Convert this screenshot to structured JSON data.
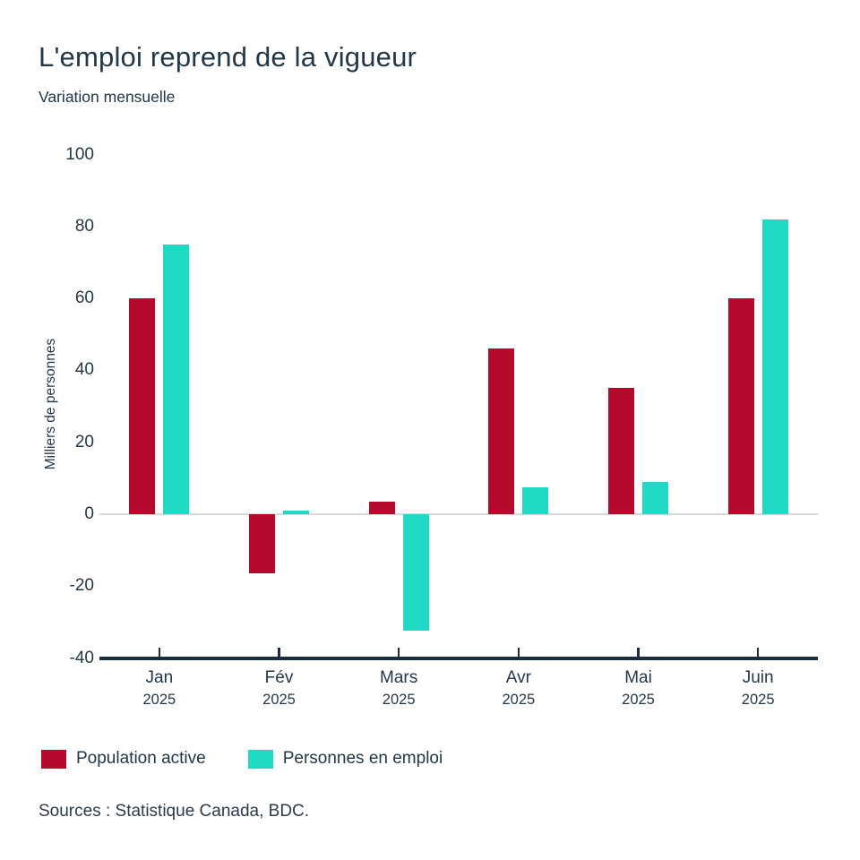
{
  "title": "L'emploi reprend de la vigueur",
  "subtitle": "Variation mensuelle",
  "source": "Sources : Statistique Canada, BDC.",
  "colors": {
    "text": "#233746",
    "axis_line": "#1b2d3d",
    "zero_line": "#d9d9d9",
    "population_active": "#b60a2c",
    "personnes_en_emploi": "#1fd9c5"
  },
  "legend": [
    {
      "label": "Population active",
      "color": "#b60a2c"
    },
    {
      "label": "Personnes en emploi",
      "color": "#1fd9c5"
    }
  ],
  "chart_data": {
    "type": "bar",
    "title": "L'emploi reprend de la vigueur",
    "subtitle": "Variation mensuelle",
    "xlabel": "",
    "ylabel": "Milliers de personnes",
    "ylim": [
      -40,
      100
    ],
    "yticks": [
      100,
      80,
      60,
      40,
      20,
      0,
      -20,
      -40
    ],
    "grid": false,
    "legend_position": "bottom-left",
    "categories": [
      {
        "month": "Jan",
        "year": "2025"
      },
      {
        "month": "Fév",
        "year": "2025"
      },
      {
        "month": "Mars",
        "year": "2025"
      },
      {
        "month": "Avr",
        "year": "2025"
      },
      {
        "month": "Mai",
        "year": "2025"
      },
      {
        "month": "Juin",
        "year": "2025"
      }
    ],
    "series": [
      {
        "name": "Population active",
        "values": [
          60,
          -16.5,
          3.5,
          46,
          35,
          60
        ]
      },
      {
        "name": "Personnes en emploi",
        "values": [
          75,
          1,
          -32.5,
          7.5,
          9,
          82
        ]
      }
    ]
  }
}
